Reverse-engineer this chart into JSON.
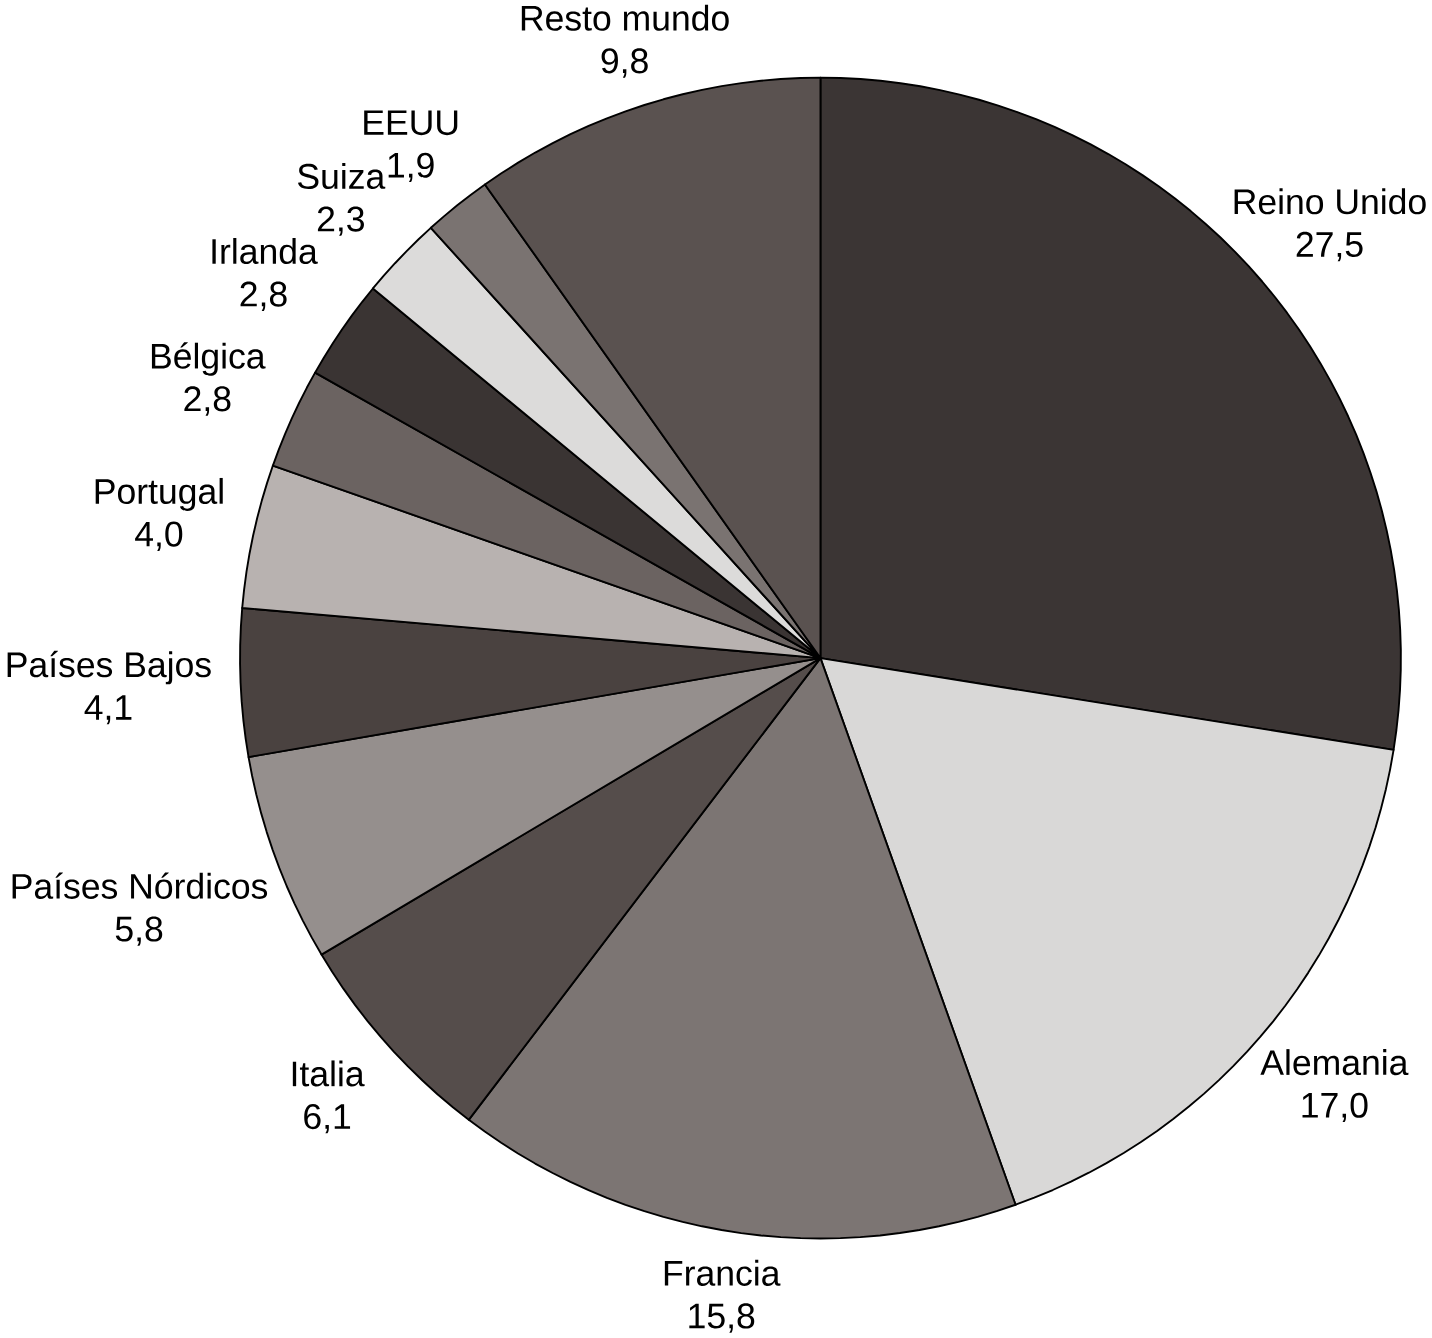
{
  "chart_data": {
    "type": "pie",
    "categories": [
      "Reino Unido",
      "Alemania",
      "Francia",
      "Italia",
      "Países Nórdicos",
      "Países Bajos",
      "Portugal",
      "Bélgica",
      "Irlanda",
      "Suiza",
      "EEUU",
      "Resto mundo"
    ],
    "values": [
      27.5,
      17.0,
      15.8,
      6.1,
      5.8,
      4.1,
      4.0,
      2.8,
      2.8,
      2.3,
      1.9,
      9.8
    ],
    "value_labels": [
      "27,5",
      "17,0",
      "15,8",
      "6,1",
      "5,8",
      "4,1",
      "4,0",
      "2,8",
      "2,8",
      "2,3",
      "1,9",
      "9,8"
    ],
    "colors": [
      "#3b3534",
      "#d9d8d7",
      "#7c7573",
      "#554d4b",
      "#958f8d",
      "#4a4240",
      "#b8b2b0",
      "#6b6361",
      "#3a3433",
      "#dcdbda",
      "#7a7371",
      "#5a5250"
    ]
  }
}
